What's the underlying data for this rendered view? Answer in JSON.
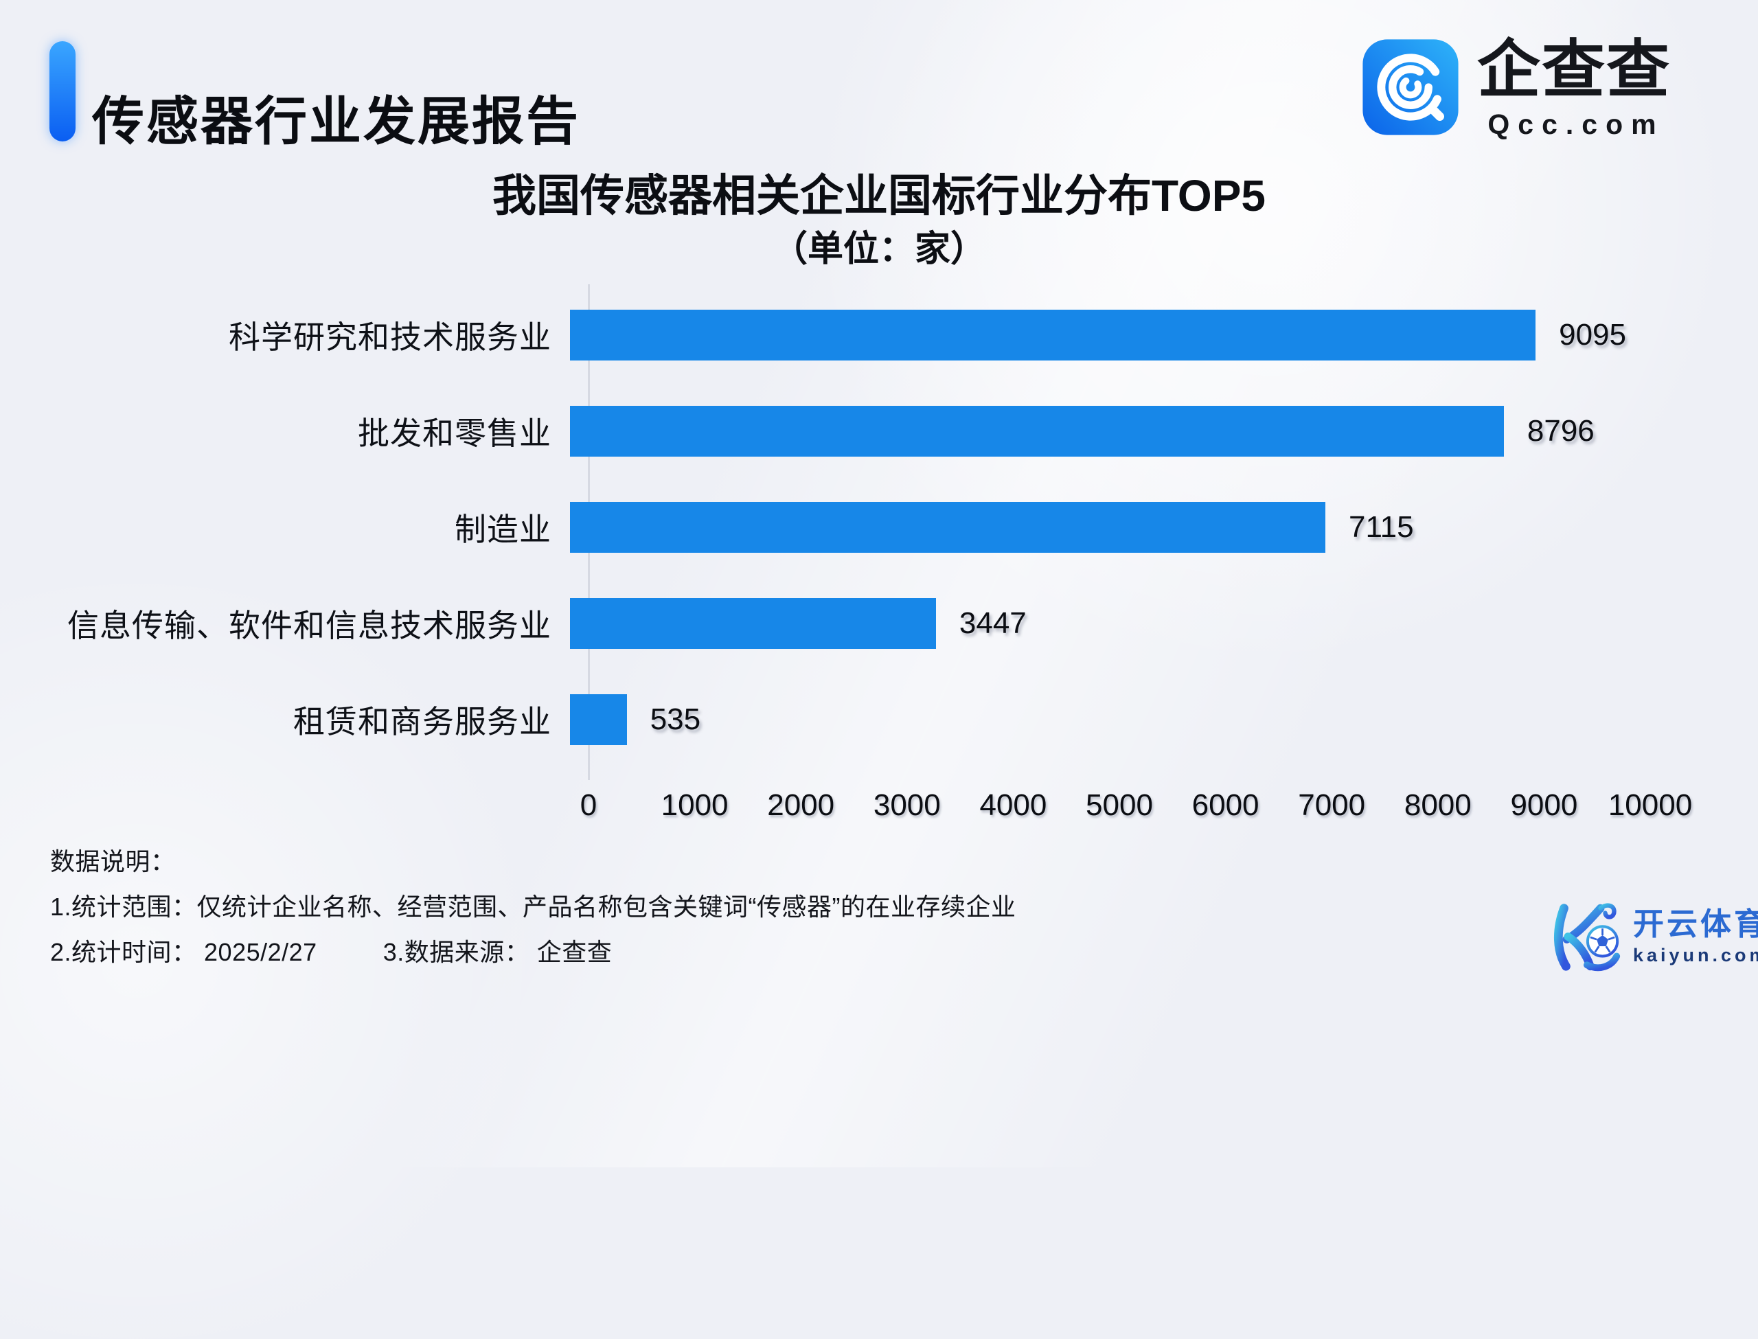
{
  "header": {
    "title": "传感器行业发展报告",
    "qcc_logo": {
      "name": "企查查",
      "domain": "Qcc.com"
    }
  },
  "chart_data": {
    "type": "bar",
    "orientation": "horizontal",
    "title": "我国传感器相关企业国标行业分布TOP5",
    "subtitle": "（单位：家）",
    "unit": "家",
    "categories": [
      "科学研究和技术服务业",
      "批发和零售业",
      "制造业",
      "信息传输、软件和信息技术服务业",
      "租赁和商务服务业"
    ],
    "values": [
      9095,
      8796,
      7115,
      3447,
      535
    ],
    "value_labels": true,
    "xlim": [
      0,
      10000
    ],
    "x_ticks": [
      0,
      1000,
      2000,
      3000,
      4000,
      5000,
      6000,
      7000,
      8000,
      9000,
      10000
    ],
    "grid": false,
    "legend": false,
    "bar_color": "#1787e8"
  },
  "notes": {
    "heading": "数据说明：",
    "line1": "1.统计范围：仅统计企业名称、经营范围、产品名称包含关键词“传感器”的在业存续企业",
    "line2_part1": "2.统计时间： 2025/2/27",
    "line2_part2": "3.数据来源： 企查查"
  },
  "watermark": {
    "name": "开云体育",
    "domain": "kaiyun.com"
  },
  "colors": {
    "bar": "#1787e8",
    "accent_top": "#3aa6ff",
    "accent_bottom": "#0a5ef2",
    "qcc_icon_top": "#2eb3f9",
    "qcc_icon_bottom": "#0b63e9",
    "kaiyun_teal": "#3fc3e6",
    "kaiyun_blue": "#3156dd",
    "kaiyun_name": "#2b6ad2",
    "kaiyun_domain": "#1b3a78",
    "text": "#0c0e13",
    "background": "#eef0f6"
  }
}
